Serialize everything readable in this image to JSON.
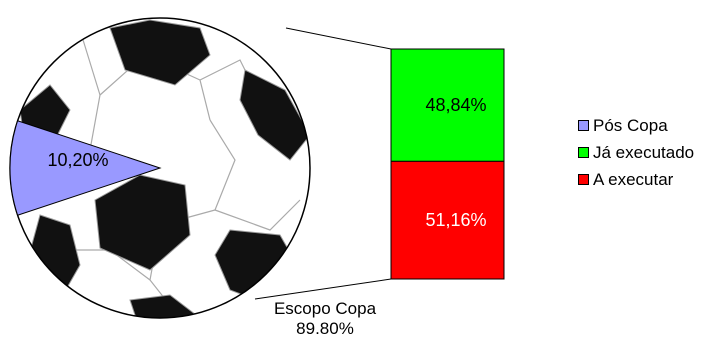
{
  "chart_data": {
    "type": "bar-of-pie",
    "pie": {
      "slices": [
        {
          "name": "Pós Copa",
          "value": 10.2,
          "label": "10,20%",
          "color": "#9999ff"
        },
        {
          "name": "Escopo Copa",
          "value": 89.8,
          "label_line1": "Escopo Copa",
          "label_line2": "89.80%"
        }
      ],
      "background": "soccer-ball"
    },
    "stacked_bar": {
      "segments": [
        {
          "name": "Já executado",
          "value": 48.84,
          "label": "48,84%",
          "color": "#00ff00"
        },
        {
          "name": "A executar",
          "value": 51.16,
          "label": "51,16%",
          "color": "#ff0000"
        }
      ]
    },
    "legend": {
      "placement": "right",
      "items": [
        {
          "label": "Pós Copa",
          "color": "#9999ff"
        },
        {
          "label": "Já executado",
          "color": "#00ff00"
        },
        {
          "label": "A executar",
          "color": "#ff0000"
        }
      ]
    }
  }
}
